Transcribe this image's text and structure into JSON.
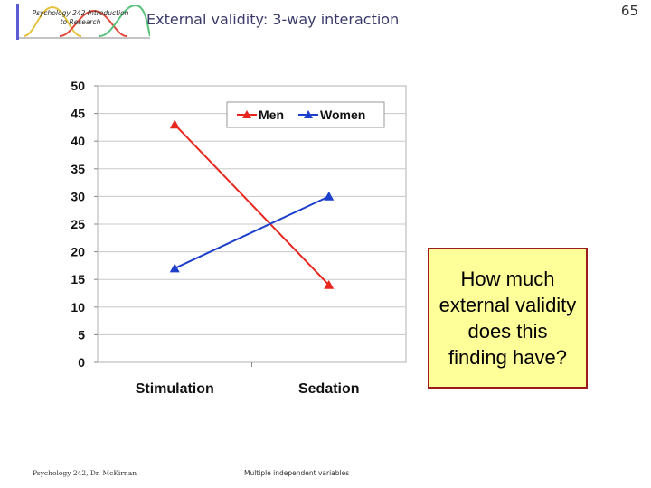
{
  "slide": {
    "logo_text": "Psychology 242 Introduction to Research",
    "title": "External validity: 3-way interaction",
    "number": "65",
    "callout": "How much external validity does this finding have?",
    "footer_left": "Psychology 242, Dr. McKirnan",
    "footer_center": "Multiple independent variables"
  },
  "chart_data": {
    "type": "line",
    "categories": [
      "Stimulation",
      "Sedation"
    ],
    "series": [
      {
        "name": "Men",
        "values": [
          43,
          14
        ],
        "color": "#e8261e",
        "marker": "triangle"
      },
      {
        "name": "Women",
        "values": [
          17,
          30
        ],
        "color": "#1d3fcc",
        "marker": "triangle"
      }
    ],
    "ylim": [
      0,
      50
    ],
    "yticks": [
      0,
      5,
      10,
      15,
      20,
      25,
      30,
      35,
      40,
      45,
      50
    ],
    "grid": true,
    "legend": "top-right",
    "xlabel": "",
    "ylabel": ""
  }
}
